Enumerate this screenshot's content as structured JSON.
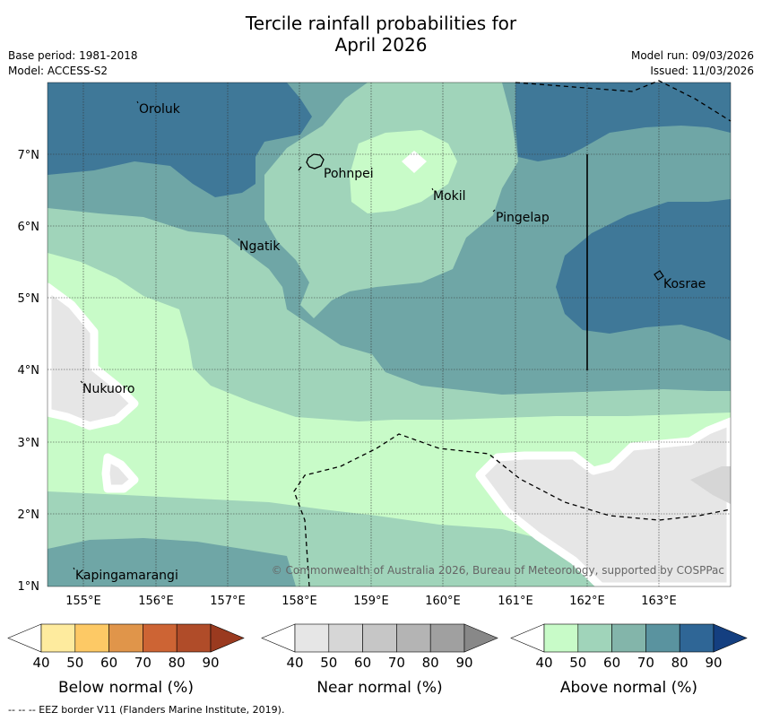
{
  "title": {
    "line1": "Tercile rainfall probabilities for",
    "line2": "April 2026"
  },
  "meta": {
    "base_period": "Base period: 1981-2018",
    "model": "Model: ACCESS-S2",
    "model_run": "Model run: 09/03/2026",
    "issued": "Issued: 11/03/2026"
  },
  "map": {
    "lat_labels": [
      "7°N",
      "6°N",
      "5°N",
      "4°N",
      "3°N",
      "2°N",
      "1°N"
    ],
    "lon_labels": [
      "155°E",
      "156°E",
      "157°E",
      "158°E",
      "159°E",
      "160°E",
      "161°E",
      "162°E",
      "163°E"
    ],
    "places": [
      "Oroluk",
      "Pohnpei",
      "Mokil",
      "Pingelap",
      "Ngatik",
      "Kosrae",
      "Nukuoro",
      "Kapingamarangi"
    ],
    "copyright": "© Commonwealth of Australia 2026, Bureau of Meteorology, supported by COSPPac"
  },
  "colorbars": [
    {
      "name": "Below normal (%)",
      "ticks": [
        "40",
        "50",
        "60",
        "70",
        "80",
        "90"
      ],
      "colors": [
        "#ffffff",
        "#feeb9e",
        "#fdc965",
        "#e0954a",
        "#cd6434",
        "#b04c29",
        "#9a3a1f"
      ]
    },
    {
      "name": "Near normal (%)",
      "ticks": [
        "40",
        "50",
        "60",
        "70",
        "80",
        "90"
      ],
      "colors": [
        "#ffffff",
        "#e6e6e6",
        "#d6d6d6",
        "#c6c6c6",
        "#b4b4b4",
        "#a0a0a0",
        "#888888"
      ]
    },
    {
      "name": "Above normal (%)",
      "ticks": [
        "40",
        "50",
        "60",
        "70",
        "80",
        "90"
      ],
      "colors": [
        "#ffffff",
        "#c8fbc8",
        "#a0d4ba",
        "#83b5aa",
        "#5a939f",
        "#2f6696",
        "#143f80"
      ]
    }
  ],
  "footnote": "--  --  -- EEZ border V11 (Flanders Marine Institute, 2019).",
  "colors": {
    "above_50": "#c8fbc8",
    "above_60": "#a0d4ba",
    "above_70": "#6fa6a6",
    "above_80": "#3f7898",
    "near_40": "#e6e6e6"
  }
}
